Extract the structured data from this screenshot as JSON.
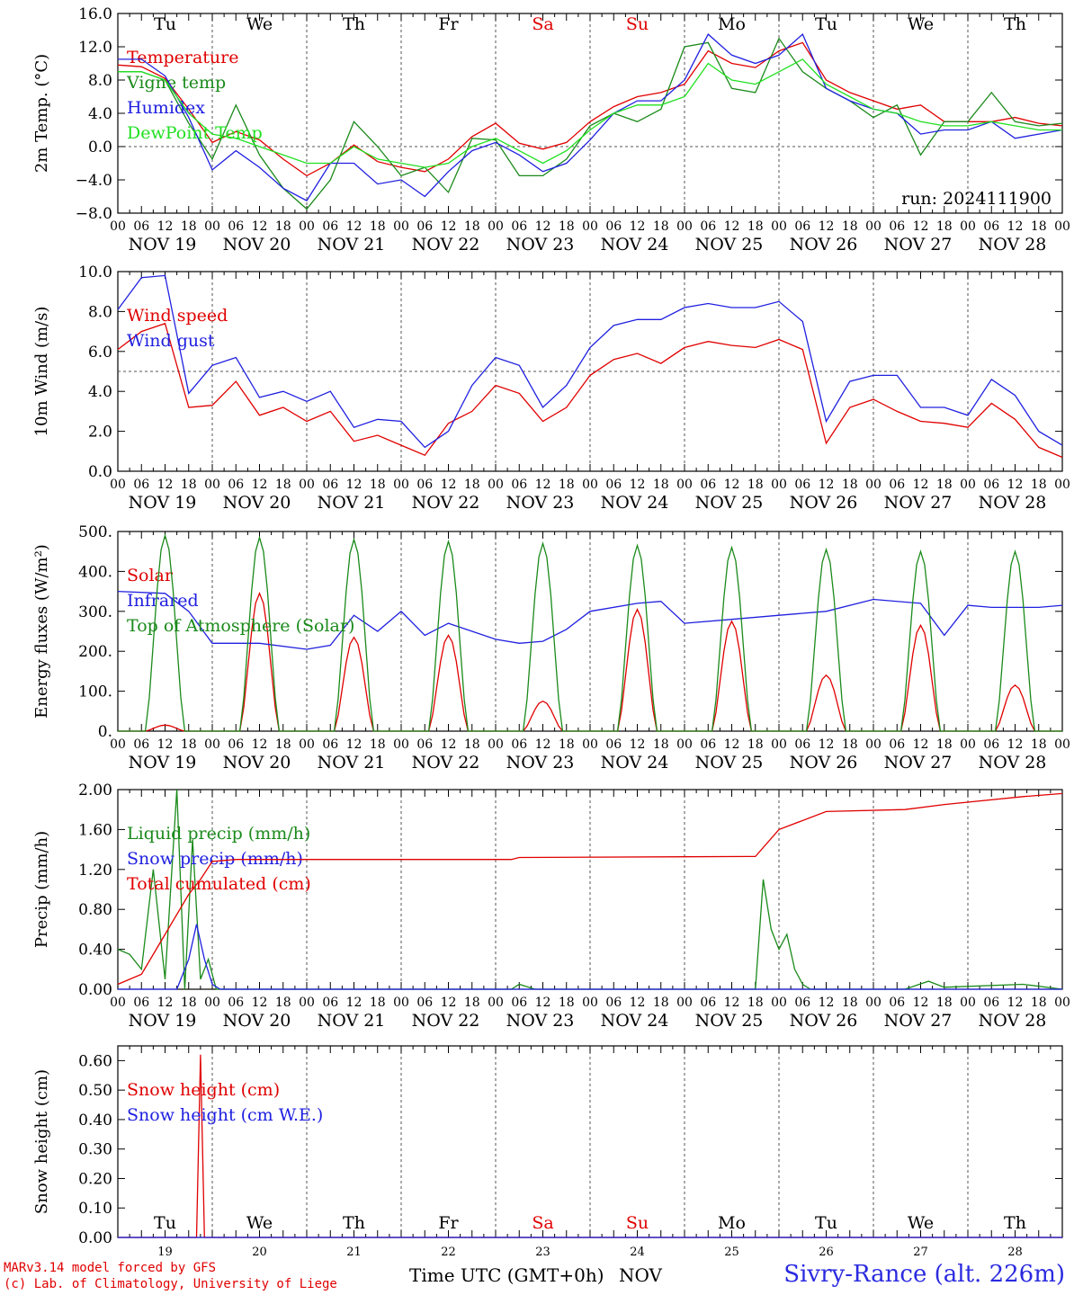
{
  "footer": {
    "credit1": "MARv3.14 model forced by GFS",
    "credit2": "(c) Lab. of Climatology, University of Liege",
    "time_label": "Time UTC (GMT+0h)",
    "nov_label": "NOV",
    "station": "Sivry-Rance (alt. 226m)"
  },
  "colors": {
    "red": "#e00000",
    "green": "#1a8a1a",
    "blue": "#2020e0",
    "lightgreen": "#20e020",
    "weekend": "#e00000"
  },
  "days": {
    "weekday_labels": [
      "Tu",
      "We",
      "Th",
      "Fr",
      "Sa",
      "Su",
      "Mo",
      "Tu",
      "We",
      "Th"
    ],
    "weekend_flags": [
      false,
      false,
      false,
      false,
      true,
      true,
      false,
      false,
      false,
      false
    ],
    "date_labels": [
      "NOV 19",
      "NOV 20",
      "NOV 21",
      "NOV 22",
      "NOV 23",
      "NOV 24",
      "NOV 25",
      "NOV 26",
      "NOV 27",
      "NOV 28"
    ],
    "day_numbers": [
      "19",
      "20",
      "21",
      "22",
      "23",
      "24",
      "25",
      "26",
      "27",
      "28"
    ],
    "hour_ticks": [
      "00",
      "06",
      "12",
      "18"
    ],
    "final_hour": "00"
  },
  "chart_data": [
    {
      "type": "line",
      "ylabel": "2m Temp. (°C)",
      "ylim": [
        -8,
        16
      ],
      "ytick_labels": [
        "16.0",
        "12.0",
        "8.0",
        "4.0",
        "0.0",
        "−4.0",
        "−8.0"
      ],
      "ytick_values": [
        16,
        12,
        8,
        4,
        0,
        -4,
        -8
      ],
      "reference_line": 0,
      "annotation": "run: 2024111900",
      "weekday_row": true,
      "x_hours": [
        0,
        6,
        12,
        18,
        24,
        30,
        36,
        42,
        48,
        54,
        60,
        66,
        72,
        78,
        84,
        90,
        96,
        102,
        108,
        114,
        120,
        126,
        132,
        138,
        144,
        150,
        156,
        162,
        168,
        174,
        180,
        186,
        192,
        198,
        204,
        210,
        216,
        222,
        228,
        234,
        240
      ],
      "series": [
        {
          "name": "Temperature",
          "color": "#e00000",
          "values": [
            9.8,
            9.6,
            8.2,
            4.5,
            0.5,
            1.8,
            0.8,
            -1.5,
            -3.5,
            -2.0,
            0.2,
            -1.8,
            -2.5,
            -3.0,
            -1.5,
            1.2,
            2.8,
            0.4,
            -0.3,
            0.5,
            3.0,
            4.8,
            6.0,
            6.5,
            7.5,
            11.5,
            10.0,
            9.5,
            11.5,
            12.5,
            8.0,
            6.5,
            5.5,
            4.5,
            5.0,
            3.0,
            3.0,
            3.0,
            3.5,
            2.8,
            2.5
          ]
        },
        {
          "name": "Vigne temp",
          "color": "#1a8a1a",
          "values": [
            9.0,
            9.0,
            8.0,
            2.8,
            -1.5,
            5.0,
            -1.0,
            -5.0,
            -7.5,
            -4.0,
            3.0,
            0.0,
            -3.5,
            -2.5,
            -5.5,
            1.0,
            0.8,
            -3.5,
            -3.5,
            -1.5,
            2.5,
            4.0,
            3.0,
            4.5,
            12.0,
            12.5,
            7.0,
            6.5,
            13.0,
            9.0,
            7.0,
            5.5,
            3.5,
            5.0,
            -1.0,
            3.0,
            3.0,
            6.5,
            3.0,
            2.5,
            2.8
          ]
        },
        {
          "name": "Humidex",
          "color": "#2020e0",
          "values": [
            10.5,
            10.5,
            8.5,
            3.5,
            -2.8,
            -0.5,
            -2.5,
            -5.0,
            -6.5,
            -2.0,
            -2.0,
            -4.5,
            -4.0,
            -6.0,
            -3.0,
            -0.5,
            0.5,
            -1.0,
            -3.0,
            -2.0,
            0.8,
            4.0,
            5.5,
            5.5,
            8.0,
            13.5,
            11.0,
            10.0,
            11.0,
            13.5,
            7.0,
            5.5,
            4.5,
            4.0,
            1.5,
            2.0,
            2.0,
            3.0,
            1.0,
            1.5,
            2.0
          ]
        },
        {
          "name": "DewPoint Temp",
          "color": "#20e020",
          "values": [
            9.0,
            9.0,
            8.0,
            4.0,
            1.5,
            1.0,
            0.0,
            -1.0,
            -2.0,
            -2.0,
            0.0,
            -1.5,
            -2.0,
            -2.5,
            -2.0,
            0.0,
            1.0,
            -0.5,
            -2.0,
            -0.5,
            2.0,
            4.0,
            5.0,
            5.0,
            6.0,
            10.0,
            8.0,
            7.5,
            9.0,
            10.5,
            7.5,
            6.0,
            4.5,
            4.0,
            3.0,
            2.5,
            2.5,
            3.0,
            2.5,
            2.0,
            2.0
          ]
        }
      ]
    },
    {
      "type": "line",
      "ylabel": "10m Wind (m/s)",
      "ylim": [
        0,
        10
      ],
      "ytick_labels": [
        "10.0",
        "8.0",
        "6.0",
        "4.0",
        "2.0",
        "0.0"
      ],
      "ytick_values": [
        10,
        8,
        6,
        4,
        2,
        0
      ],
      "reference_line": 5,
      "x_hours": [
        0,
        6,
        12,
        18,
        24,
        30,
        36,
        42,
        48,
        54,
        60,
        66,
        72,
        78,
        84,
        90,
        96,
        102,
        108,
        114,
        120,
        126,
        132,
        138,
        144,
        150,
        156,
        162,
        168,
        174,
        180,
        186,
        192,
        198,
        204,
        210,
        216,
        222,
        228,
        234,
        240
      ],
      "series": [
        {
          "name": "Wind speed",
          "color": "#e00000",
          "values": [
            6.1,
            7.0,
            7.4,
            3.2,
            3.3,
            4.5,
            2.8,
            3.2,
            2.5,
            3.0,
            1.5,
            1.8,
            1.3,
            0.8,
            2.4,
            3.0,
            4.3,
            3.9,
            2.5,
            3.2,
            4.8,
            5.6,
            5.9,
            5.4,
            6.2,
            6.5,
            6.3,
            6.2,
            6.6,
            6.1,
            1.4,
            3.2,
            3.6,
            3.0,
            2.5,
            2.4,
            2.2,
            3.4,
            2.6,
            1.2,
            0.7
          ]
        },
        {
          "name": "Wind gust",
          "color": "#2020e0",
          "values": [
            8.1,
            9.7,
            9.8,
            3.9,
            5.3,
            5.7,
            3.7,
            4.0,
            3.5,
            4.0,
            2.2,
            2.6,
            2.5,
            1.2,
            2.0,
            4.3,
            5.7,
            5.3,
            3.2,
            4.3,
            6.2,
            7.3,
            7.6,
            7.6,
            8.2,
            8.4,
            8.2,
            8.2,
            8.5,
            7.5,
            2.5,
            4.5,
            4.8,
            4.8,
            3.2,
            3.2,
            2.8,
            4.6,
            3.8,
            2.0,
            1.3
          ]
        }
      ]
    },
    {
      "type": "line",
      "ylabel": "Energy fluxes (W/m²)",
      "ylim": [
        0,
        500
      ],
      "ytick_labels": [
        "500.",
        "400.",
        "300.",
        "200.",
        "100.",
        "0."
      ],
      "ytick_values": [
        500,
        400,
        300,
        200,
        100,
        0
      ],
      "series": [
        {
          "name": "Solar",
          "color": "#e00000",
          "peaks": [
            15,
            345,
            235,
            240,
            75,
            305,
            275,
            140,
            265,
            115
          ]
        },
        {
          "name": "Infrared",
          "color": "#2020e0",
          "x_hours": [
            0,
            12,
            18,
            24,
            36,
            48,
            54,
            60,
            66,
            72,
            78,
            84,
            90,
            96,
            102,
            108,
            114,
            120,
            132,
            138,
            144,
            156,
            168,
            180,
            192,
            204,
            210,
            216,
            222,
            228,
            234,
            240
          ],
          "values": [
            350,
            345,
            300,
            220,
            220,
            205,
            215,
            290,
            250,
            300,
            240,
            270,
            250,
            230,
            220,
            225,
            255,
            300,
            320,
            325,
            270,
            280,
            290,
            300,
            330,
            320,
            240,
            315,
            310,
            310,
            310,
            315
          ]
        },
        {
          "name": "Top of Atmosphere (Solar)",
          "color": "#1a8a1a",
          "peaks": [
            490,
            485,
            480,
            475,
            470,
            465,
            460,
            455,
            450,
            450
          ]
        }
      ]
    },
    {
      "type": "line",
      "ylabel": "Precip (mm/h)",
      "ylim": [
        0,
        2.0
      ],
      "ytick_labels": [
        "2.00",
        "1.60",
        "1.20",
        "0.80",
        "0.40",
        "0.00"
      ],
      "ytick_values": [
        2.0,
        1.6,
        1.2,
        0.8,
        0.4,
        0.0
      ],
      "series": [
        {
          "name": "Liquid precip (mm/h)",
          "color": "#1a8a1a",
          "x_hours": [
            0,
            3,
            6,
            9,
            12,
            15,
            17,
            19,
            21,
            23,
            25,
            30,
            100,
            102,
            106,
            162,
            164,
            166,
            168,
            170,
            172,
            174,
            176,
            200,
            206,
            210,
            230,
            240
          ],
          "values": [
            0.4,
            0.35,
            0.2,
            1.2,
            0.1,
            2.0,
            0.0,
            1.5,
            0.1,
            0.3,
            0.0,
            0.0,
            0.0,
            0.05,
            0.0,
            0.0,
            1.1,
            0.6,
            0.4,
            0.55,
            0.2,
            0.05,
            0.0,
            0.0,
            0.08,
            0.02,
            0.05,
            0.0
          ]
        },
        {
          "name": "Snow precip (mm/h)",
          "color": "#2020e0",
          "x_hours": [
            0,
            15,
            18,
            20,
            22,
            24,
            26,
            30,
            240
          ],
          "values": [
            0.0,
            0.0,
            0.3,
            0.65,
            0.3,
            0.05,
            0.0,
            0.0,
            0.0
          ]
        },
        {
          "name": "Total cumulated (cm)",
          "color": "#e00000",
          "x_hours": [
            0,
            6,
            12,
            18,
            21,
            24,
            30,
            60,
            100,
            102,
            160,
            162,
            168,
            180,
            200,
            210,
            230,
            240
          ],
          "values": [
            0.05,
            0.15,
            0.55,
            0.95,
            1.1,
            1.28,
            1.3,
            1.3,
            1.3,
            1.32,
            1.33,
            1.33,
            1.6,
            1.78,
            1.8,
            1.85,
            1.93,
            1.96
          ]
        }
      ]
    },
    {
      "type": "line",
      "ylabel": "Snow height (cm)",
      "ylim": [
        0,
        0.65
      ],
      "ytick_labels": [
        "0.60",
        "0.50",
        "0.40",
        "0.30",
        "0.20",
        "0.10",
        "0.00"
      ],
      "ytick_values": [
        0.6,
        0.5,
        0.4,
        0.3,
        0.2,
        0.1,
        0.0
      ],
      "weekday_row_bottom": true,
      "series": [
        {
          "name": "Snow height (cm)",
          "color": "#e00000",
          "x_hours": [
            0,
            20,
            21,
            22,
            240
          ],
          "values": [
            0.0,
            0.0,
            0.62,
            0.0,
            0.0
          ]
        },
        {
          "name": "Snow height (cm W.E.)",
          "color": "#2020e0",
          "x_hours": [
            0,
            240
          ],
          "values": [
            0.0,
            0.0
          ]
        }
      ]
    }
  ]
}
